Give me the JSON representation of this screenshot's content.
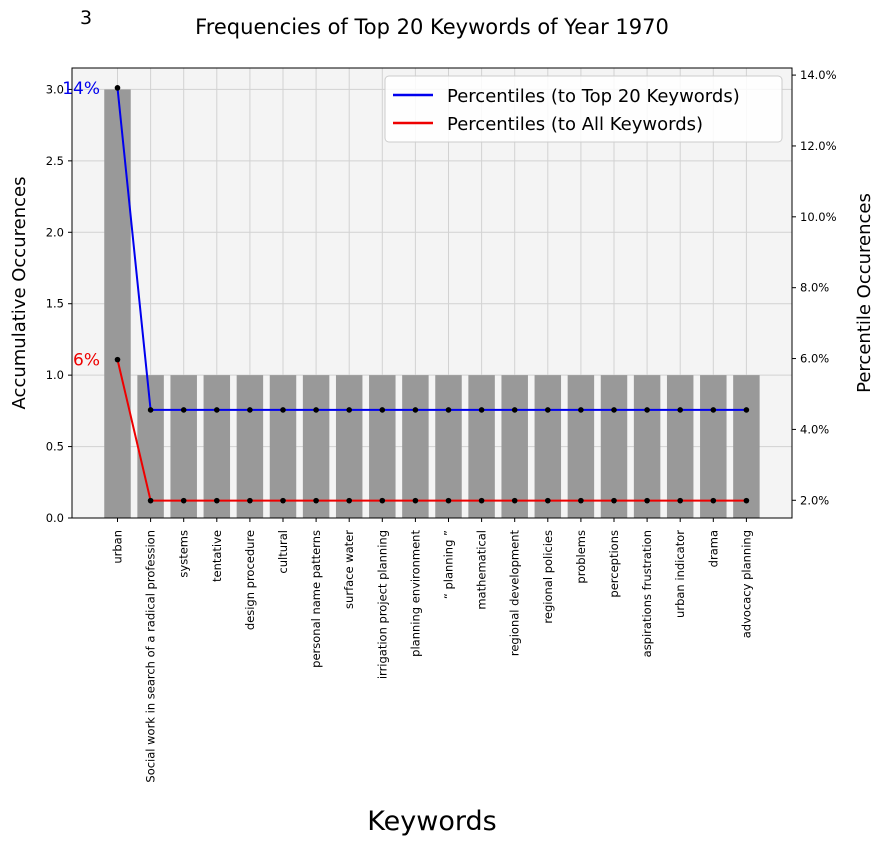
{
  "corner_label": "3",
  "chart_data": {
    "type": "bar",
    "title": "Frequencies of Top 20 Keywords of Year 1970",
    "xlabel": "Keywords",
    "ylabel": "Accumulative Occurences",
    "y2label": "Percentile Occurences",
    "categories": [
      "urban",
      "Social work in search of a radical profession",
      "systems",
      "tentative",
      "design procedure",
      "cultural",
      "personal name patterns",
      "surface water",
      "irrigation project planning",
      "planning environment",
      "“ planning ”",
      "mathematical",
      "regional development",
      "regional policies",
      "problems",
      "perceptions",
      "aspirations frustration",
      "urban indicator",
      "drama",
      "advocacy planning"
    ],
    "values": [
      3,
      1,
      1,
      1,
      1,
      1,
      1,
      1,
      1,
      1,
      1,
      1,
      1,
      1,
      1,
      1,
      1,
      1,
      1,
      1
    ],
    "ylim": [
      0,
      3.15
    ],
    "yticks": [
      "0.0",
      "0.5",
      "1.0",
      "1.5",
      "2.0",
      "2.5",
      "3.0"
    ],
    "y2lim": [
      1.5,
      14.2
    ],
    "y2ticks": [
      "2.0%",
      "4.0%",
      "6.0%",
      "8.0%",
      "10.0%",
      "12.0%",
      "14.0%"
    ],
    "series": [
      {
        "name": "Percentiles (to Top 20 Keywords)",
        "color": "#0000ee",
        "values": [
          13.64,
          4.55,
          4.55,
          4.55,
          4.55,
          4.55,
          4.55,
          4.55,
          4.55,
          4.55,
          4.55,
          4.55,
          4.55,
          4.55,
          4.55,
          4.55,
          4.55,
          4.55,
          4.55,
          4.55
        ]
      },
      {
        "name": "Percentiles (to All Keywords)",
        "color": "#ee0000",
        "values": [
          5.97,
          1.99,
          1.99,
          1.99,
          1.99,
          1.99,
          1.99,
          1.99,
          1.99,
          1.99,
          1.99,
          1.99,
          1.99,
          1.99,
          1.99,
          1.99,
          1.99,
          1.99,
          1.99,
          1.99
        ]
      }
    ],
    "annotations": [
      {
        "text": "14%",
        "color": "#0000ee"
      },
      {
        "text": "6%",
        "color": "#ee0000"
      }
    ],
    "legend": "top-right",
    "grid": true,
    "bar_color": "#999999",
    "plot_background": "#f4f4f4"
  }
}
